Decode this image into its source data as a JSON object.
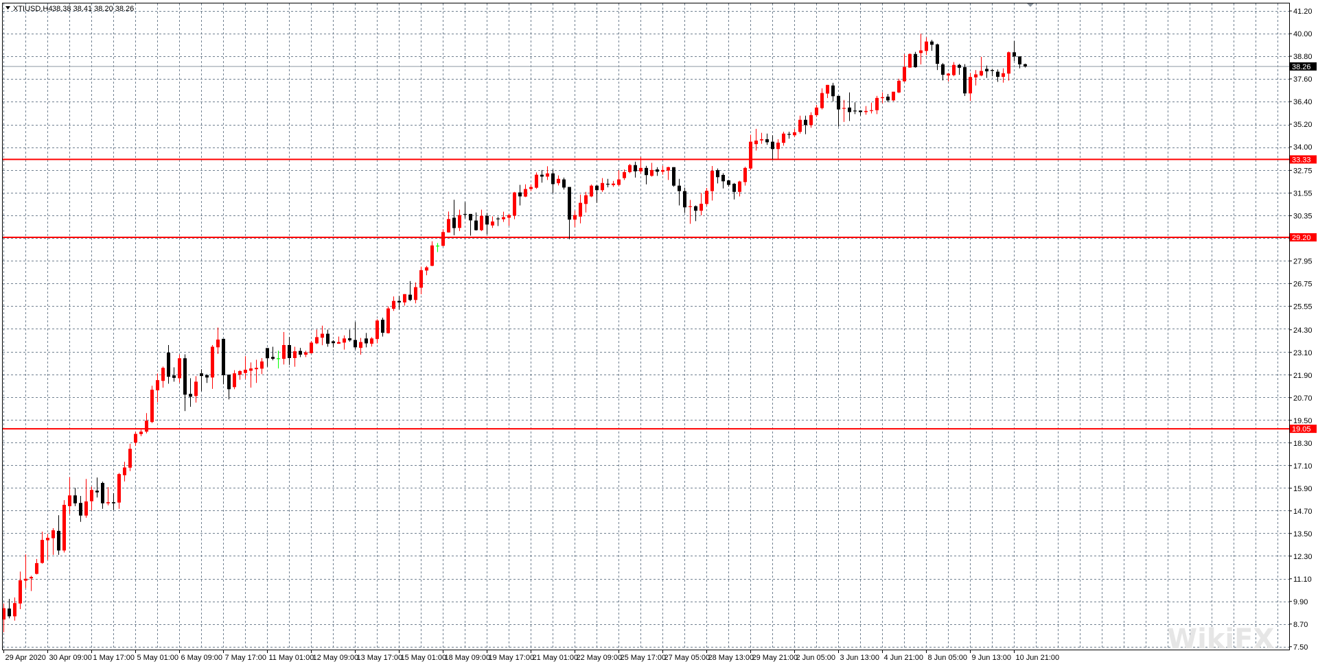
{
  "header": {
    "symbol": "XTIUSD,H4",
    "ohlc": "38.38 38.41 38.20 38.26"
  },
  "colors": {
    "up": "#ff0000",
    "down": "#000000",
    "doji": "#00ff00",
    "grid": "#6f7f8f",
    "level_line": "#ff0000",
    "current_price_line": "#8c96a0"
  },
  "watermark": "WikiFX",
  "chart_data": {
    "type": "candlestick",
    "symbol": "XTIUSD",
    "timeframe": "H4",
    "grid": true,
    "ylim": [
      7.5,
      41.2
    ],
    "y_ticks": [
      "41.20",
      "40.00",
      "38.80",
      "37.60",
      "36.40",
      "35.20",
      "34.00",
      "32.75",
      "31.55",
      "30.35",
      "27.95",
      "26.75",
      "25.55",
      "24.30",
      "23.10",
      "21.90",
      "20.70",
      "19.50",
      "18.30",
      "17.10",
      "15.90",
      "14.70",
      "13.50",
      "12.30",
      "11.10",
      "9.90",
      "8.70",
      "7.50"
    ],
    "x_ticks": [
      "29 Apr 2020",
      "30 Apr 09:00",
      "1 May 17:00",
      "5 May 01:00",
      "6 May 09:00",
      "7 May 17:00",
      "11 May 01:00",
      "12 May 09:00",
      "13 May 17:00",
      "15 May 01:00",
      "18 May 09:00",
      "19 May 17:00",
      "21 May 01:00",
      "22 May 09:00",
      "25 May 17:00",
      "27 May 05:00",
      "28 May 13:00",
      "29 May 21:00",
      "2 Jun 05:00",
      "3 Jun 13:00",
      "4 Jun 21:00",
      "8 Jun 05:00",
      "9 Jun 13:00",
      "10 Jun 21:00"
    ],
    "current_price": "38.26",
    "levels": [
      "33.33",
      "29.20",
      "19.05"
    ],
    "ohlc_fields": [
      "open",
      "high",
      "low",
      "close"
    ],
    "candles": [
      [
        8.94,
        9.79,
        8.27,
        9.54
      ],
      [
        9.52,
        10.03,
        9.0,
        9.11
      ],
      [
        9.11,
        10.11,
        8.88,
        9.81
      ],
      [
        9.79,
        11.48,
        9.49,
        11.02
      ],
      [
        11.0,
        12.39,
        10.61,
        11.1
      ],
      [
        11.12,
        11.26,
        10.45,
        11.2
      ],
      [
        11.36,
        12.15,
        11.33,
        11.93
      ],
      [
        11.94,
        13.6,
        11.9,
        13.16
      ],
      [
        13.14,
        13.48,
        12.11,
        13.27
      ],
      [
        13.25,
        13.78,
        12.37,
        13.67
      ],
      [
        13.64,
        14.47,
        12.37,
        12.6
      ],
      [
        12.6,
        15.27,
        12.49,
        15.02
      ],
      [
        14.95,
        16.48,
        14.54,
        15.52
      ],
      [
        15.52,
        15.92,
        14.95,
        15.1
      ],
      [
        15.12,
        15.49,
        14.12,
        14.45
      ],
      [
        14.45,
        16.39,
        14.33,
        15.2
      ],
      [
        15.21,
        15.98,
        14.73,
        15.81
      ],
      [
        15.77,
        16.47,
        15.41,
        15.68
      ],
      [
        16.18,
        16.25,
        14.81,
        15.1
      ],
      [
        15.1,
        15.96,
        14.99,
        15.16
      ],
      [
        15.16,
        15.64,
        14.75,
        15.1
      ],
      [
        15.14,
        16.71,
        14.81,
        16.65
      ],
      [
        16.59,
        17.3,
        16.26,
        17.0
      ],
      [
        16.99,
        18.26,
        16.81,
        17.99
      ],
      [
        18.32,
        18.9,
        18.14,
        18.78
      ],
      [
        18.77,
        19.01,
        18.66,
        18.9
      ],
      [
        18.9,
        19.88,
        18.81,
        19.48
      ],
      [
        19.41,
        21.33,
        19.35,
        21.12
      ],
      [
        21.09,
        21.98,
        20.46,
        21.63
      ],
      [
        21.59,
        22.35,
        21.23,
        22.28
      ],
      [
        23.09,
        23.49,
        21.44,
        21.81
      ],
      [
        21.88,
        22.31,
        21.55,
        21.75
      ],
      [
        21.73,
        22.98,
        21.5,
        22.79
      ],
      [
        22.79,
        23.0,
        19.99,
        20.86
      ],
      [
        20.9,
        21.73,
        20.22,
        20.75
      ],
      [
        20.79,
        21.84,
        20.44,
        21.55
      ],
      [
        21.99,
        22.21,
        21.04,
        21.85
      ],
      [
        21.89,
        21.95,
        21.48,
        21.77
      ],
      [
        21.77,
        23.49,
        21.17,
        23.4
      ],
      [
        23.37,
        24.42,
        23.02,
        23.78
      ],
      [
        23.82,
        23.82,
        21.41,
        21.89
      ],
      [
        21.92,
        21.92,
        20.61,
        21.15
      ],
      [
        21.26,
        22.16,
        21.15,
        21.99
      ],
      [
        21.92,
        22.16,
        21.65,
        22.11
      ],
      [
        22.01,
        22.9,
        21.7,
        22.18
      ],
      [
        22.13,
        22.57,
        21.23,
        22.25
      ],
      [
        22.21,
        22.71,
        21.48,
        22.28
      ],
      [
        22.24,
        22.8,
        21.95,
        22.62
      ],
      [
        23.33,
        23.33,
        22.34,
        22.79
      ],
      [
        22.86,
        23.4,
        22.68,
        22.76
      ],
      [
        22.79,
        23.19,
        22.25,
        22.79
      ],
      [
        22.76,
        24.18,
        22.46,
        23.49
      ],
      [
        23.49,
        23.92,
        22.44,
        22.8
      ],
      [
        22.8,
        23.4,
        22.34,
        23.16
      ],
      [
        23.18,
        23.34,
        22.85,
        22.98
      ],
      [
        22.98,
        23.19,
        22.85,
        23.1
      ],
      [
        23.06,
        23.7,
        23.04,
        23.62
      ],
      [
        23.58,
        24.31,
        23.54,
        23.91
      ],
      [
        23.88,
        24.52,
        23.48,
        24.09
      ],
      [
        24.09,
        24.31,
        23.4,
        23.56
      ],
      [
        23.69,
        23.75,
        23.36,
        23.59
      ],
      [
        23.56,
        23.94,
        23.56,
        23.65
      ],
      [
        23.62,
        24.0,
        23.25,
        23.84
      ],
      [
        23.85,
        24.31,
        23.67,
        23.74
      ],
      [
        23.76,
        24.71,
        23.25,
        23.37
      ],
      [
        23.34,
        23.87,
        22.98,
        23.65
      ],
      [
        23.84,
        24.13,
        23.37,
        23.58
      ],
      [
        23.56,
        23.91,
        23.41,
        23.84
      ],
      [
        23.81,
        24.86,
        23.58,
        24.79
      ],
      [
        24.83,
        24.94,
        23.94,
        24.14
      ],
      [
        24.12,
        25.54,
        24.1,
        25.43
      ],
      [
        25.41,
        26.07,
        25.3,
        25.83
      ],
      [
        25.83,
        26.1,
        25.37,
        25.75
      ],
      [
        25.75,
        26.19,
        25.58,
        26.19
      ],
      [
        26.16,
        26.88,
        25.82,
        25.88
      ],
      [
        25.88,
        26.81,
        25.7,
        26.56
      ],
      [
        26.53,
        27.65,
        26.18,
        27.46
      ],
      [
        27.44,
        27.68,
        27.19,
        27.61
      ],
      [
        27.69,
        28.99,
        27.67,
        28.77
      ],
      [
        28.76,
        28.9,
        28.42,
        28.76
      ],
      [
        28.75,
        29.63,
        28.72,
        29.48
      ],
      [
        29.46,
        30.57,
        29.45,
        30.17
      ],
      [
        30.24,
        31.19,
        29.31,
        29.69
      ],
      [
        29.7,
        30.67,
        29.53,
        30.38
      ],
      [
        30.44,
        31.07,
        30.2,
        30.42
      ],
      [
        30.44,
        30.44,
        29.29,
        30.1
      ],
      [
        30.09,
        30.52,
        29.56,
        29.58
      ],
      [
        29.58,
        30.67,
        29.53,
        30.34
      ],
      [
        30.34,
        30.5,
        29.36,
        29.88
      ],
      [
        29.83,
        30.31,
        29.7,
        30.04
      ],
      [
        30.2,
        30.28,
        29.8,
        30.18
      ],
      [
        30.16,
        30.56,
        30.02,
        30.27
      ],
      [
        30.24,
        30.44,
        29.82,
        30.38
      ],
      [
        30.35,
        31.61,
        30.16,
        31.58
      ],
      [
        31.58,
        31.98,
        30.89,
        31.37
      ],
      [
        31.36,
        32.01,
        31.33,
        31.76
      ],
      [
        31.76,
        32.01,
        31.65,
        31.87
      ],
      [
        31.83,
        32.64,
        31.77,
        32.52
      ],
      [
        32.52,
        32.77,
        32.1,
        32.42
      ],
      [
        32.42,
        32.97,
        32.24,
        32.59
      ],
      [
        32.59,
        32.8,
        31.55,
        32.02
      ],
      [
        32.07,
        32.48,
        31.95,
        32.3
      ],
      [
        32.27,
        32.37,
        31.73,
        31.84
      ],
      [
        31.87,
        31.87,
        29.1,
        30.14
      ],
      [
        30.14,
        30.62,
        29.74,
        30.38
      ],
      [
        30.3,
        31.47,
        29.94,
        31.03
      ],
      [
        30.97,
        31.61,
        30.52,
        31.43
      ],
      [
        31.37,
        32.0,
        31.33,
        31.94
      ],
      [
        31.94,
        31.98,
        31.03,
        31.7
      ],
      [
        31.7,
        32.34,
        31.61,
        32.08
      ],
      [
        32.04,
        32.3,
        31.85,
        32.02
      ],
      [
        31.97,
        32.19,
        31.88,
        32.05
      ],
      [
        31.98,
        32.76,
        31.91,
        32.27
      ],
      [
        32.34,
        32.8,
        32.24,
        32.66
      ],
      [
        32.66,
        33.09,
        32.6,
        33.03
      ],
      [
        33.03,
        33.21,
        32.37,
        32.7
      ],
      [
        32.7,
        33.46,
        32.58,
        32.88
      ],
      [
        32.88,
        32.99,
        32.01,
        32.5
      ],
      [
        32.46,
        33.15,
        32.42,
        32.77
      ],
      [
        32.8,
        32.92,
        32.46,
        32.68
      ],
      [
        32.68,
        33.0,
        32.52,
        32.77
      ],
      [
        32.74,
        32.94,
        32.24,
        32.92
      ],
      [
        32.92,
        32.92,
        31.88,
        31.94
      ],
      [
        31.94,
        32.3,
        30.89,
        31.65
      ],
      [
        31.65,
        31.83,
        30.49,
        30.79
      ],
      [
        30.82,
        31.18,
        29.92,
        30.85
      ],
      [
        30.85,
        30.89,
        30.06,
        30.61
      ],
      [
        30.61,
        31.55,
        30.37,
        30.98
      ],
      [
        30.97,
        31.82,
        30.86,
        31.67
      ],
      [
        31.65,
        32.98,
        31.15,
        32.73
      ],
      [
        32.76,
        32.85,
        32.06,
        32.39
      ],
      [
        32.51,
        32.6,
        31.79,
        32.17
      ],
      [
        32.22,
        32.25,
        31.88,
        31.98
      ],
      [
        32.04,
        32.08,
        31.21,
        31.61
      ],
      [
        31.61,
        32.2,
        31.37,
        32.16
      ],
      [
        32.13,
        32.94,
        31.94,
        32.88
      ],
      [
        32.85,
        34.64,
        32.77,
        34.27
      ],
      [
        34.14,
        34.95,
        33.8,
        34.33
      ],
      [
        34.34,
        34.74,
        34.16,
        34.4
      ],
      [
        34.4,
        34.7,
        34.1,
        34.24
      ],
      [
        34.27,
        34.61,
        33.34,
        33.88
      ],
      [
        33.88,
        34.4,
        33.34,
        34.22
      ],
      [
        34.21,
        34.8,
        34.06,
        34.7
      ],
      [
        34.68,
        34.8,
        34.43,
        34.66
      ],
      [
        34.61,
        34.95,
        34.52,
        34.77
      ],
      [
        34.79,
        35.65,
        34.7,
        35.43
      ],
      [
        35.43,
        35.65,
        34.67,
        35.15
      ],
      [
        35.15,
        35.83,
        35.01,
        35.68
      ],
      [
        35.68,
        36.22,
        35.58,
        36.08
      ],
      [
        36.05,
        37.1,
        35.98,
        36.85
      ],
      [
        36.82,
        37.28,
        36.58,
        37.28
      ],
      [
        37.25,
        37.39,
        36.4,
        36.68
      ],
      [
        36.7,
        36.7,
        35.07,
        35.98
      ],
      [
        36.04,
        36.48,
        35.32,
        36.06
      ],
      [
        36.08,
        36.88,
        35.37,
        35.84
      ],
      [
        35.92,
        36.36,
        35.73,
        35.9
      ],
      [
        35.92,
        35.94,
        35.65,
        35.84
      ],
      [
        35.84,
        36.16,
        35.7,
        35.9
      ],
      [
        35.93,
        36.34,
        35.77,
        35.94
      ],
      [
        35.94,
        36.7,
        35.73,
        36.59
      ],
      [
        36.58,
        36.88,
        36.31,
        36.63
      ],
      [
        36.66,
        36.8,
        36.37,
        36.46
      ],
      [
        36.46,
        36.92,
        36.42,
        36.92
      ],
      [
        36.88,
        37.61,
        36.85,
        37.5
      ],
      [
        37.47,
        38.91,
        37.44,
        38.23
      ],
      [
        38.2,
        38.95,
        38.19,
        38.92
      ],
      [
        38.92,
        39.03,
        38.19,
        38.22
      ],
      [
        38.97,
        40.0,
        38.37,
        39.11
      ],
      [
        39.08,
        39.8,
        38.86,
        39.58
      ],
      [
        39.58,
        39.67,
        39.09,
        39.41
      ],
      [
        39.43,
        39.47,
        38.07,
        38.4
      ],
      [
        38.37,
        38.44,
        37.52,
        37.82
      ],
      [
        37.78,
        37.92,
        37.47,
        37.88
      ],
      [
        37.8,
        38.49,
        37.74,
        38.34
      ],
      [
        38.34,
        38.4,
        37.82,
        38.19
      ],
      [
        38.22,
        38.38,
        36.69,
        36.83
      ],
      [
        36.83,
        37.92,
        36.43,
        37.7
      ],
      [
        37.68,
        38.07,
        37.25,
        37.84
      ],
      [
        37.78,
        38.77,
        37.74,
        38.02
      ],
      [
        38.13,
        38.31,
        37.65,
        38.0
      ],
      [
        38.07,
        38.13,
        37.74,
        38.02
      ],
      [
        37.98,
        38.1,
        37.44,
        37.71
      ],
      [
        37.71,
        38.16,
        37.4,
        37.9
      ],
      [
        37.88,
        39.05,
        37.51,
        39.01
      ],
      [
        39.01,
        39.61,
        38.55,
        38.79
      ],
      [
        38.79,
        38.79,
        38.16,
        38.37
      ],
      [
        38.38,
        38.41,
        38.2,
        38.26
      ]
    ]
  }
}
